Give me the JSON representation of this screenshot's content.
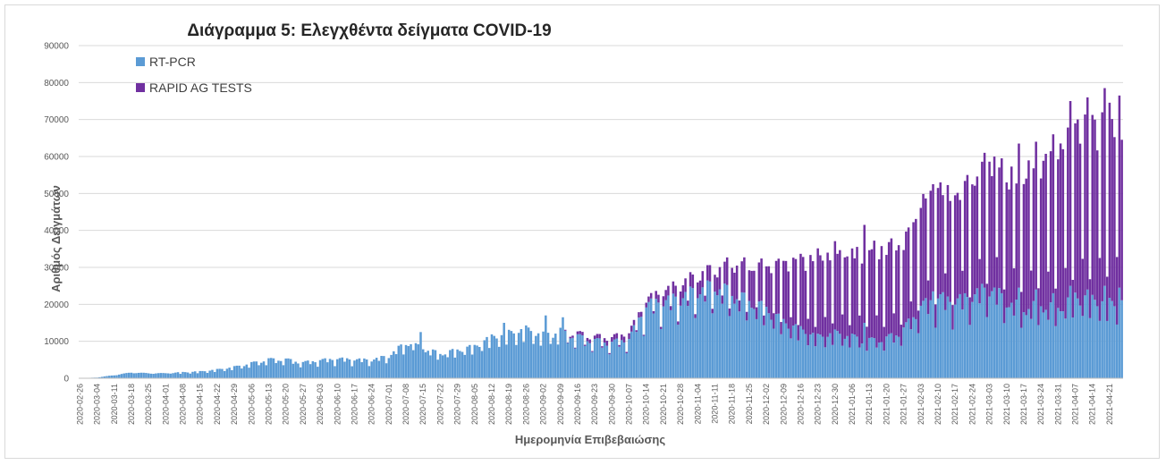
{
  "chart_data": {
    "type": "bar",
    "stacked": true,
    "title": "Διάγραμμα 5: Ελεγχθέντα δείγματα COVID-19",
    "xlabel": "Ημερομηνία Επιβεβαιώσης",
    "ylabel": "Αριθμός Δειγμάτων",
    "ylim": [
      0,
      90000
    ],
    "yticks": [
      0,
      10000,
      20000,
      30000,
      40000,
      50000,
      60000,
      70000,
      80000,
      90000
    ],
    "grid": true,
    "legend_position": "top-left",
    "x_start_date": "2020-02-26",
    "x_end_date": "2021-04-26",
    "x_tick_labels": [
      "2020-02-26",
      "2020-03-04",
      "2020-03-11",
      "2020-03-18",
      "2020-03-25",
      "2020-04-01",
      "2020-04-08",
      "2020-04-15",
      "2020-04-22",
      "2020-04-29",
      "2020-05-06",
      "2020-05-13",
      "2020-05-20",
      "2020-05-27",
      "2020-06-03",
      "2020-06-10",
      "2020-06-17",
      "2020-06-24",
      "2020-07-01",
      "2020-07-08",
      "2020-07-15",
      "2020-07-22",
      "2020-07-29",
      "2020-08-05",
      "2020-08-12",
      "2020-08-19",
      "2020-08-26",
      "2020-09-02",
      "2020-09-09",
      "2020-09-16",
      "2020-09-23",
      "2020-09-30",
      "2020-10-07",
      "2020-10-14",
      "2020-10-21",
      "2020-10-28",
      "2020-11-04",
      "2020-11-11",
      "2020-11-18",
      "2020-11-25",
      "2020-12-02",
      "2020-12-09",
      "2020-12-16",
      "2020-12-23",
      "2020-12-30",
      "2021-01-06",
      "2021-01-13",
      "2021-01-20",
      "2021-01-27",
      "2021-02-03",
      "2021-02-10",
      "2021-02-17",
      "2021-02-24",
      "2021-03-03",
      "2021-03-10",
      "2021-03-17",
      "2021-03-24",
      "2021-03-31",
      "2021-04-07",
      "2021-04-14",
      "2021-04-21"
    ],
    "weekly_points": {
      "rt_pcr": [
        0,
        200,
        800,
        1500,
        1300,
        1300,
        1600,
        1800,
        2300,
        3000,
        4000,
        5000,
        5000,
        4200,
        4800,
        5200,
        5000,
        4900,
        6000,
        9500,
        8000,
        6500,
        7500,
        8500,
        11000,
        12000,
        13000,
        11500,
        12500,
        11000,
        10000,
        9500,
        10500,
        19500,
        20500,
        21500,
        23500,
        24500,
        22500,
        20500,
        18500,
        15000,
        13000,
        11000,
        12000,
        11000,
        10000,
        10500,
        13000,
        19000,
        21500,
        20500,
        22000,
        24500,
        20500,
        18500,
        19500,
        18500,
        22000,
        21000,
        20000
      ],
      "rapid_ag": [
        0,
        0,
        0,
        0,
        0,
        0,
        0,
        0,
        0,
        0,
        0,
        0,
        0,
        0,
        0,
        0,
        0,
        0,
        0,
        0,
        0,
        0,
        0,
        0,
        0,
        0,
        0,
        0,
        0,
        800,
        1000,
        1300,
        1500,
        1200,
        2500,
        3500,
        4000,
        4500,
        8000,
        9000,
        11000,
        15000,
        18000,
        21000,
        22000,
        22000,
        24000,
        24000,
        22000,
        26000,
        28000,
        27000,
        29000,
        34000,
        33000,
        36000,
        38000,
        41000,
        44000,
        45000,
        48000
      ]
    },
    "low_days_per_week": [
      [
        3,
        0.35
      ],
      [
        6,
        0.25
      ]
    ],
    "peaks": [
      {
        "date": "2021-04-05",
        "rt_pcr": 25000,
        "rapid_ag": 50000
      },
      {
        "date": "2021-04-12",
        "rt_pcr": 24000,
        "rapid_ag": 52000
      },
      {
        "date": "2021-04-19",
        "rt_pcr": 25000,
        "rapid_ag": 53500
      },
      {
        "date": "2021-04-25",
        "rt_pcr": 24500,
        "rapid_ag": 52000
      },
      {
        "date": "2021-03-29",
        "rt_pcr": 23000,
        "rapid_ag": 43000
      },
      {
        "date": "2021-03-22",
        "rt_pcr": 24000,
        "rapid_ag": 40000
      },
      {
        "date": "2021-03-15",
        "rt_pcr": 24500,
        "rapid_ag": 39000
      },
      {
        "date": "2021-03-01",
        "rt_pcr": 24500,
        "rapid_ag": 36500
      },
      {
        "date": "2021-03-08",
        "rt_pcr": 23000,
        "rapid_ag": 36500
      },
      {
        "date": "2021-02-08",
        "rt_pcr": 23500,
        "rapid_ag": 29000
      },
      {
        "date": "2021-02-22",
        "rt_pcr": 22000,
        "rapid_ag": 33000
      },
      {
        "date": "2021-01-11",
        "rt_pcr": 15000,
        "rapid_ag": 26500
      },
      {
        "date": "2020-09-03",
        "rt_pcr": 17000,
        "rapid_ag": 0
      },
      {
        "date": "2020-09-10",
        "rt_pcr": 16500,
        "rapid_ag": 0
      },
      {
        "date": "2020-08-17",
        "rt_pcr": 15000,
        "rapid_ag": 0
      },
      {
        "date": "2020-07-14",
        "rt_pcr": 12500,
        "rapid_ag": 0
      }
    ],
    "series": [
      {
        "name": "RT-PCR",
        "color": "#5b9bd5"
      },
      {
        "name": "RAPID AG TESTS",
        "color": "#7030a0"
      }
    ]
  },
  "gridline_color": "#d9d9d9",
  "axis_color": "#bfbfbf"
}
